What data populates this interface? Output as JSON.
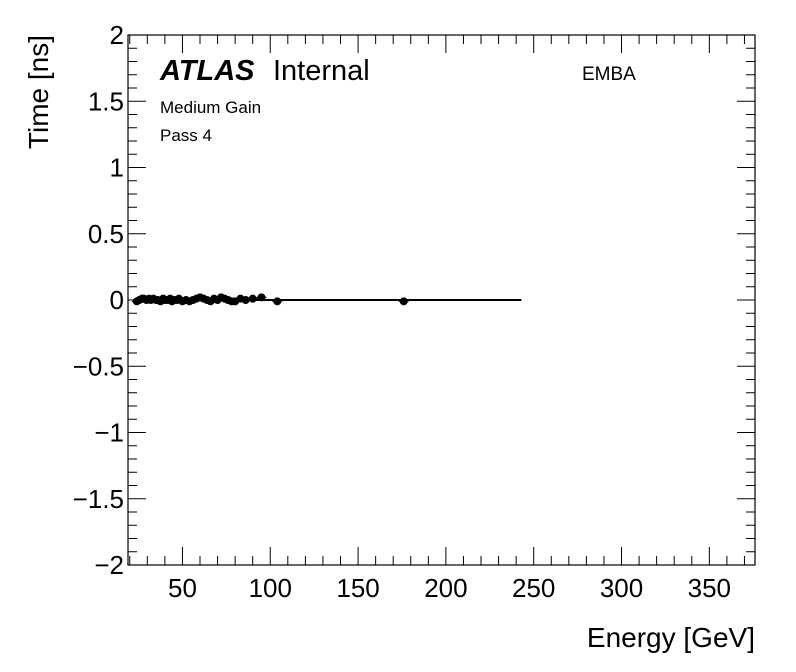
{
  "chart_data": {
    "type": "scatter",
    "xlabel": "Energy [GeV]",
    "ylabel": "Time [ns]",
    "xlim": [
      19,
      376
    ],
    "ylim": [
      -2,
      2
    ],
    "x_ticks": [
      50,
      100,
      150,
      200,
      250,
      300,
      350
    ],
    "x_tick_labels": [
      "50",
      "100",
      "150",
      "200",
      "250",
      "300",
      "350"
    ],
    "y_ticks": [
      -2,
      -1.5,
      -1,
      -0.5,
      0,
      0.5,
      1,
      1.5,
      2
    ],
    "y_tick_labels": [
      "−2",
      "−1.5",
      "−1",
      "−0.5",
      "0",
      "0.5",
      "1",
      "1.5",
      "2"
    ],
    "annotations": {
      "experiment": "ATLAS",
      "status": "Internal",
      "gain": "Medium Gain",
      "pass": "Pass 4",
      "region": "EMBA"
    },
    "fit_line": {
      "x": [
        24,
        243
      ],
      "y": [
        0,
        0
      ]
    },
    "points": {
      "x": [
        24,
        25.5,
        27,
        28,
        29.5,
        31,
        32,
        33.5,
        35,
        36,
        37.5,
        39,
        40,
        41.5,
        43,
        44,
        45.5,
        47,
        48,
        50,
        52,
        54,
        56,
        58,
        60,
        62,
        64,
        66,
        68,
        70,
        72,
        74,
        76,
        78,
        80,
        83,
        86,
        90,
        95,
        104,
        176
      ],
      "y": [
        -0.01,
        0.0,
        0.01,
        0.01,
        0.0,
        0.01,
        0.0,
        0.01,
        0.0,
        0.0,
        -0.01,
        0.01,
        0.0,
        0.0,
        0.01,
        -0.01,
        0.0,
        0.0,
        0.01,
        -0.01,
        0.0,
        -0.01,
        0.0,
        0.01,
        0.02,
        0.01,
        0.0,
        -0.01,
        0.01,
        0.0,
        0.02,
        0.01,
        0.0,
        -0.01,
        -0.01,
        0.01,
        0.0,
        0.01,
        0.02,
        -0.01,
        -0.01
      ]
    }
  }
}
